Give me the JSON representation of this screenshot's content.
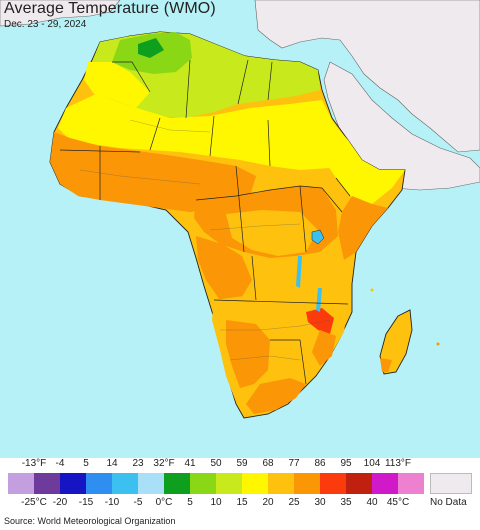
{
  "header": {
    "title": "Average Temperature (WMO)",
    "subtitle": "Dec. 23 - 29, 2024"
  },
  "map": {
    "ocean_color": "#b5f1f6",
    "no_data_land_color": "#efeaee",
    "border_color": "#222222"
  },
  "legend": {
    "fahrenheit_labels": [
      "-13°F",
      "-4",
      "5",
      "14",
      "23",
      "32°F",
      "41",
      "50",
      "59",
      "68",
      "77",
      "86",
      "95",
      "104",
      "113°F"
    ],
    "celsius_labels": [
      "-25°C",
      "-20",
      "-15",
      "-10",
      "-5",
      "0°C",
      "5",
      "10",
      "15",
      "20",
      "25",
      "30",
      "35",
      "40",
      "45°C"
    ],
    "colors": [
      "#c39fe0",
      "#6e3b9c",
      "#1515c4",
      "#2f8ff0",
      "#3cc0f0",
      "#a9e0f7",
      "#0f9f1f",
      "#8ad815",
      "#c8ea1c",
      "#fff700",
      "#fec10e",
      "#fb9606",
      "#fb3b0b",
      "#c0200f",
      "#d019c9",
      "#ee80d0"
    ],
    "no_data_label": "No Data"
  },
  "footer": {
    "source": "Source: World Meteorological Organization"
  }
}
